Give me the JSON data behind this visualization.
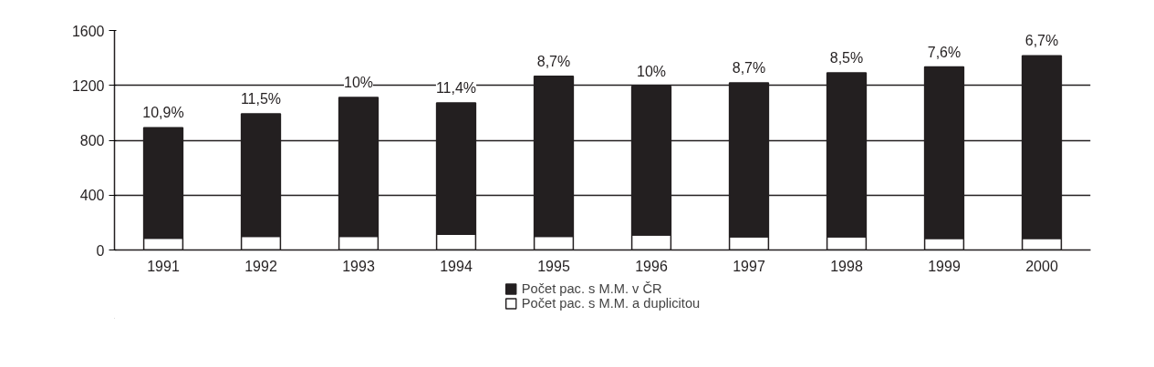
{
  "chart_data": {
    "type": "bar",
    "stacked": true,
    "categories": [
      "1991",
      "1992",
      "1993",
      "1994",
      "1995",
      "1996",
      "1997",
      "1998",
      "1999",
      "2000"
    ],
    "series": [
      {
        "name": "Počet pac. s M.M. a duplicitou",
        "color": "#ffffff",
        "values": [
          87,
          100,
          100,
          115,
          100,
          110,
          97,
          97,
          84,
          84
        ]
      },
      {
        "name": "Počet pac. s M.M. v ČR",
        "color": "#231f20",
        "values": [
          805,
          892,
          1012,
          957,
          1167,
          1083,
          1122,
          1195,
          1250,
          1331
        ]
      }
    ],
    "ylim": [
      0,
      1600
    ],
    "yticks": [
      0,
      400,
      800,
      1200,
      1600
    ],
    "grid": "y",
    "legend": "bottom",
    "annotations": [
      {
        "text": "10,9%",
        "x": "1991",
        "y": 892
      },
      {
        "text": "11,5%",
        "x": "1992",
        "y": 992
      },
      {
        "text": "10%",
        "x": "1993",
        "y": 1112
      },
      {
        "text": "11,4%",
        "x": "1994",
        "y": 1072
      },
      {
        "text": "8,7%",
        "x": "1995",
        "y": 1267
      },
      {
        "text": "10%",
        "x": "1996",
        "y": 1193
      },
      {
        "text": "8,7%",
        "x": "1997",
        "y": 1219
      },
      {
        "text": "8,5%",
        "x": "1998",
        "y": 1292
      },
      {
        "text": "7,6%",
        "x": "1999",
        "y": 1334
      },
      {
        "text": "6,7%",
        "x": "2000",
        "y": 1415
      }
    ]
  }
}
